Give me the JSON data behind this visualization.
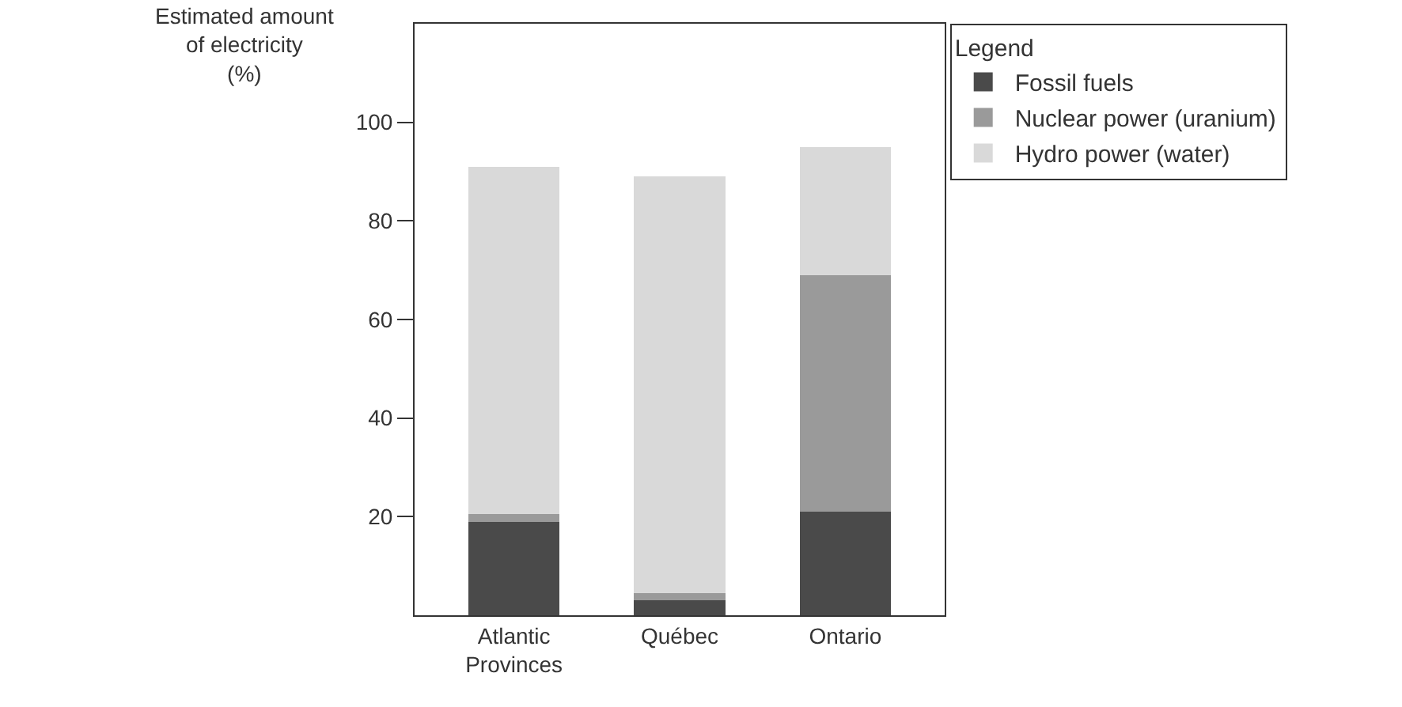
{
  "chart_data": {
    "type": "bar",
    "stacked": true,
    "ylabel": "Estimated amount\nof electricity\n(%)",
    "legend_title": "Legend",
    "categories": [
      "Atlantic Provinces",
      "Québec",
      "Ontario"
    ],
    "series": [
      {
        "name": "Fossil fuels",
        "color": "#4a4a4a",
        "values": [
          19,
          3,
          21
        ]
      },
      {
        "name": "Nuclear power (uranium)",
        "color": "#9a9a9a",
        "values": [
          1.5,
          1.5,
          48
        ]
      },
      {
        "name": "Hydro power (water)",
        "color": "#d9d9d9",
        "values": [
          70.5,
          84.5,
          26
        ]
      }
    ],
    "ylim": [
      0,
      120
    ],
    "yticks": [
      20,
      40,
      60,
      80,
      100
    ],
    "legend": "top right"
  }
}
